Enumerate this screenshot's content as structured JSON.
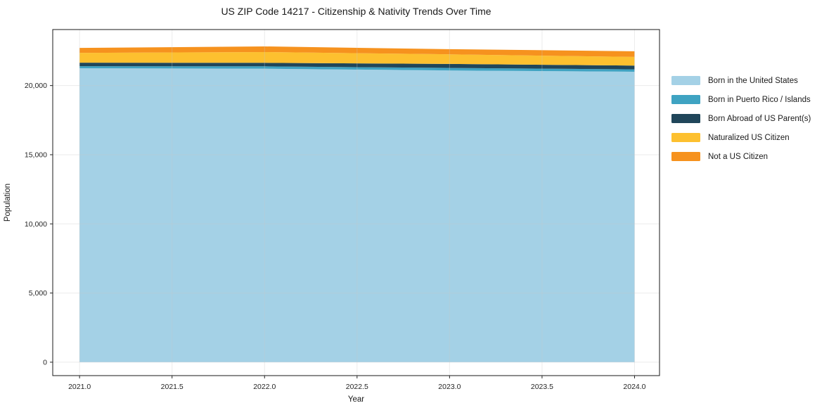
{
  "chart_data": {
    "type": "area",
    "stacked": true,
    "title": "US ZIP Code 14217 - Citizenship & Nativity Trends Over Time",
    "xlabel": "Year",
    "ylabel": "Population",
    "x": [
      2021,
      2022,
      2023,
      2024
    ],
    "series": [
      {
        "name": "Born in the United States",
        "color": "#A4D1E6",
        "values": [
          21250,
          21220,
          21090,
          21000
        ]
      },
      {
        "name": "Born in Puerto Rico / Islands",
        "color": "#3FA3C2",
        "values": [
          150,
          170,
          185,
          170
        ]
      },
      {
        "name": "Born Abroad of US Parent(s)",
        "color": "#20465A",
        "values": [
          255,
          255,
          290,
          275
        ]
      },
      {
        "name": "Naturalized US Citizen",
        "color": "#FDC02F",
        "values": [
          710,
          780,
          695,
          625
        ]
      },
      {
        "name": "Not a US Citizen",
        "color": "#F6921E",
        "values": [
          355,
          405,
          370,
          410
        ]
      }
    ],
    "xlim": [
      2020.855,
      2024.135
    ],
    "ylim": [
      -970,
      24050
    ],
    "xticks": [
      2021.0,
      2021.5,
      2022.0,
      2022.5,
      2023.0,
      2023.5,
      2024.0
    ],
    "xtick_labels": [
      "2021.0",
      "2021.5",
      "2022.0",
      "2022.5",
      "2023.0",
      "2023.5",
      "2024.0"
    ],
    "yticks": [
      0,
      5000,
      10000,
      15000,
      20000
    ],
    "ytick_labels": [
      "0",
      "5,000",
      "10,000",
      "15,000",
      "20,000"
    ],
    "grid": true,
    "legend_position": "right",
    "colors": {
      "spine": "#1a1a1a",
      "tick": "#262626",
      "gridline": "#c8c8c8"
    }
  }
}
